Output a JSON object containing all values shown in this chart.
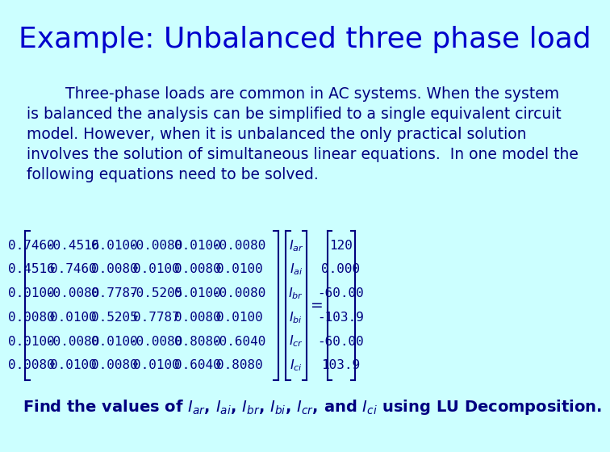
{
  "bg_color": "#ccffff",
  "title": "Example: Unbalanced three phase load",
  "title_color": "#0000cc",
  "title_fontsize": 26,
  "body_color": "#000080",
  "body_fontsize": 13.5,
  "body_text": "        Three-phase loads are common in AC systems. When the system\nis balanced the analysis can be simplified to a single equivalent circuit\nmodel. However, when it is unbalanced the only practical solution\ninvolves the solution of simultaneous linear equations.  In one model the\nfollowing equations need to be solved.",
  "matrix_A": [
    [
      "0.7460",
      "-0.4516",
      "0.0100",
      "-0.0080",
      "0.0100",
      "-0.0080"
    ],
    [
      "0.4516",
      "0.7460",
      "0.0080",
      "0.0100",
      "0.0080",
      "0.0100"
    ],
    [
      "0.0100",
      "-0.0080",
      "0.7787",
      "-0.5205",
      "0.0100",
      "-0.0080"
    ],
    [
      "0.0080",
      "0.0100",
      "0.5205",
      "0.7787",
      "0.0080",
      "0.0100"
    ],
    [
      "0.0100",
      "-0.0080",
      "0.0100",
      "-0.0080",
      "0.8080",
      "-0.6040"
    ],
    [
      "0.0080",
      "0.0100",
      "0.0080",
      "0.0100",
      "0.6040",
      "0.8080"
    ]
  ],
  "vector_x": [
    "I_{ar}",
    "I_{ai}",
    "I_{br}",
    "I_{bi}",
    "I_{cr}",
    "I_{ci}"
  ],
  "vector_b": [
    "120",
    "0.000",
    "-60.00",
    "-103.9",
    "-60.00",
    "103.9"
  ],
  "footer_text": "Find the values of ",
  "footer_vars": [
    "I_{ar}",
    "I_{ai}",
    "I_{br}",
    "I_{bi}",
    "I_{cr}",
    "I_{ci}"
  ],
  "footer_suffix": " using LU Decomposition.",
  "matrix_color": "#000080",
  "matrix_fontsize": 11.5
}
